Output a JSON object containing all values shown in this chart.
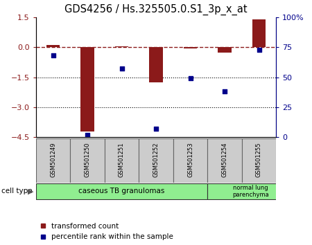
{
  "title": "GDS4256 / Hs.325505.0.S1_3p_x_at",
  "samples": [
    "GSM501249",
    "GSM501250",
    "GSM501251",
    "GSM501252",
    "GSM501253",
    "GSM501254",
    "GSM501255"
  ],
  "transformed_count": [
    0.1,
    -4.2,
    0.05,
    -1.75,
    -0.05,
    -0.28,
    1.4
  ],
  "percentile_rank": [
    68,
    2,
    57,
    7,
    49,
    38,
    73
  ],
  "ylim_left": [
    -4.5,
    1.5
  ],
  "ylim_right": [
    0,
    100
  ],
  "left_ticks": [
    1.5,
    0,
    -1.5,
    -3,
    -4.5
  ],
  "right_ticks": [
    100,
    75,
    50,
    25,
    0
  ],
  "right_tick_labels": [
    "100%",
    "75",
    "50",
    "25",
    "0"
  ],
  "bar_color": "#8B1A1A",
  "dot_color": "#00008B",
  "dotted_lines": [
    -1.5,
    -3
  ],
  "group1_label": "caseous TB granulomas",
  "group1_samples": 5,
  "group2_label": "normal lung\nparenchyma",
  "group2_samples": 2,
  "group_color": "#90EE90",
  "cell_type_label": "cell type",
  "legend_red_label": "transformed count",
  "legend_blue_label": "percentile rank within the sample",
  "sample_box_color": "#cccccc",
  "sample_box_edge": "#666666"
}
